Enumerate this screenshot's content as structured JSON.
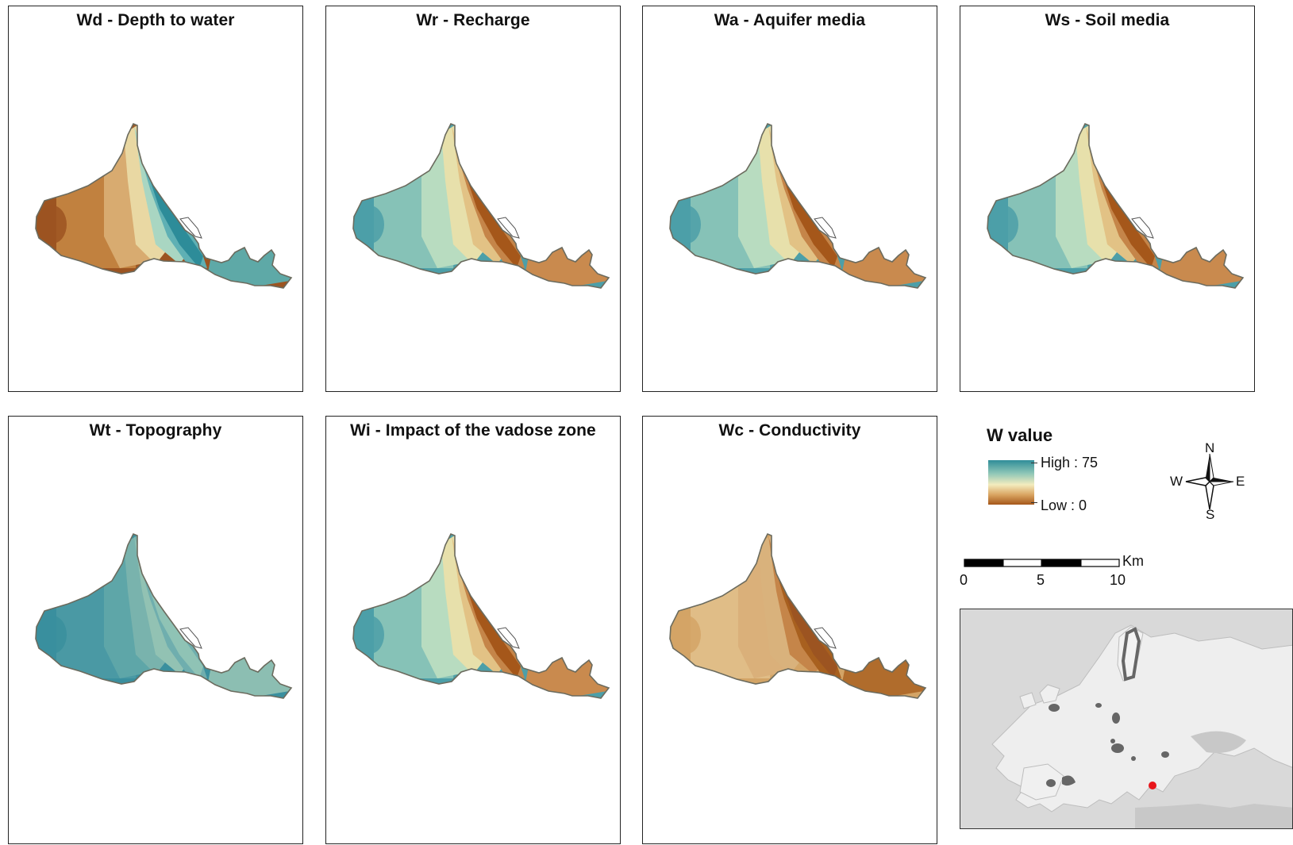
{
  "panels": [
    {
      "id": "wd",
      "title": "Wd - Depth to water",
      "scheme": "depth"
    },
    {
      "id": "wr",
      "title": "Wr - Recharge",
      "scheme": "recharge"
    },
    {
      "id": "wa",
      "title": "Wa - Aquifer media",
      "scheme": "aquifer"
    },
    {
      "id": "ws",
      "title": "Ws - Soil media",
      "scheme": "soil"
    },
    {
      "id": "wt",
      "title": "Wt - Topography",
      "scheme": "topography"
    },
    {
      "id": "wi",
      "title": "Wi - Impact of the vadose zone",
      "scheme": "vadose"
    },
    {
      "id": "wc",
      "title": "Wc - Conductivity",
      "scheme": "conductivity"
    }
  ],
  "legend": {
    "title": "W value",
    "high_label": "High : 75",
    "low_label": "Low : 0",
    "high_color": "#2f8d99",
    "low_color": "#a5571a"
  },
  "compass": {
    "n": "N",
    "s": "S",
    "e": "E",
    "w": "W"
  },
  "scale_bar": {
    "unit": "Km",
    "ticks": [
      "0",
      "5",
      "10"
    ]
  },
  "inset_map": {
    "icon": "europe-locator-map",
    "highlight_color": "#e8151b"
  }
}
